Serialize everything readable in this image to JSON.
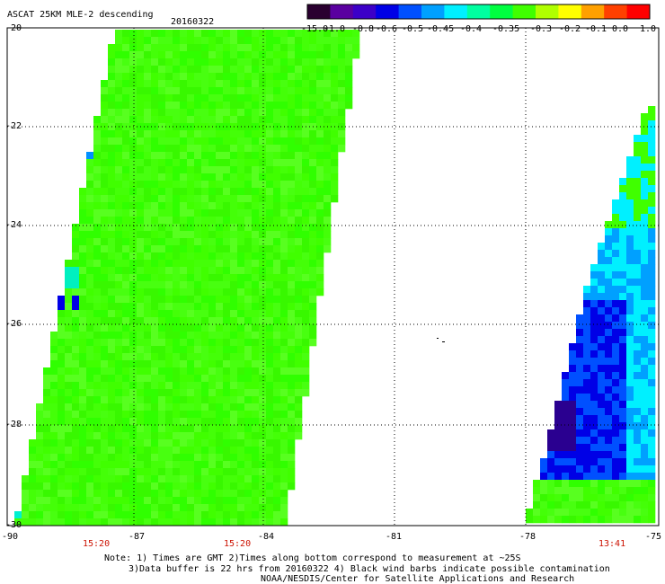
{
  "title": "ASCAT 25KM MLE-2 descending",
  "date": "20160322",
  "colorbar": {
    "ticks": [
      "-15.0",
      "-1.0",
      "-0.8",
      "-0.6",
      "-0.5",
      "-0.45",
      "-0.4",
      "-0.35",
      "-0.3",
      "-0.2",
      "-0.1",
      "0.0",
      "1.0"
    ],
    "colors": [
      "#2a0030",
      "#5a00a0",
      "#3c00c8",
      "#0000e6",
      "#0050ff",
      "#00a0ff",
      "#00f0ff",
      "#00ffa0",
      "#00ff40",
      "#40ff00",
      "#b0ff00",
      "#ffff00",
      "#ffa000",
      "#ff4000",
      "#ff0000"
    ]
  },
  "lat_labels": [
    "-20",
    "-22",
    "-24",
    "-26",
    "-28",
    "-30"
  ],
  "lon_labels": [
    "-90",
    "-87",
    "-84",
    "-81",
    "-78",
    "-75"
  ],
  "time_labels": [
    "15:20",
    "15:20",
    "13:41"
  ],
  "notes": [
    "Note: 1) Times are GMT 2)Times along bottom correspond to measurement at ~25S",
    "3)Data buffer is 22 hrs from 20160322 4) Black wind barbs indicate possible contamination",
    "NOAA/NESDIS/Center for Satellite Applications and Research"
  ],
  "colors": {
    "swath_green": "#40ff00",
    "time_label": "#cc1100",
    "grid": "#000000"
  }
}
